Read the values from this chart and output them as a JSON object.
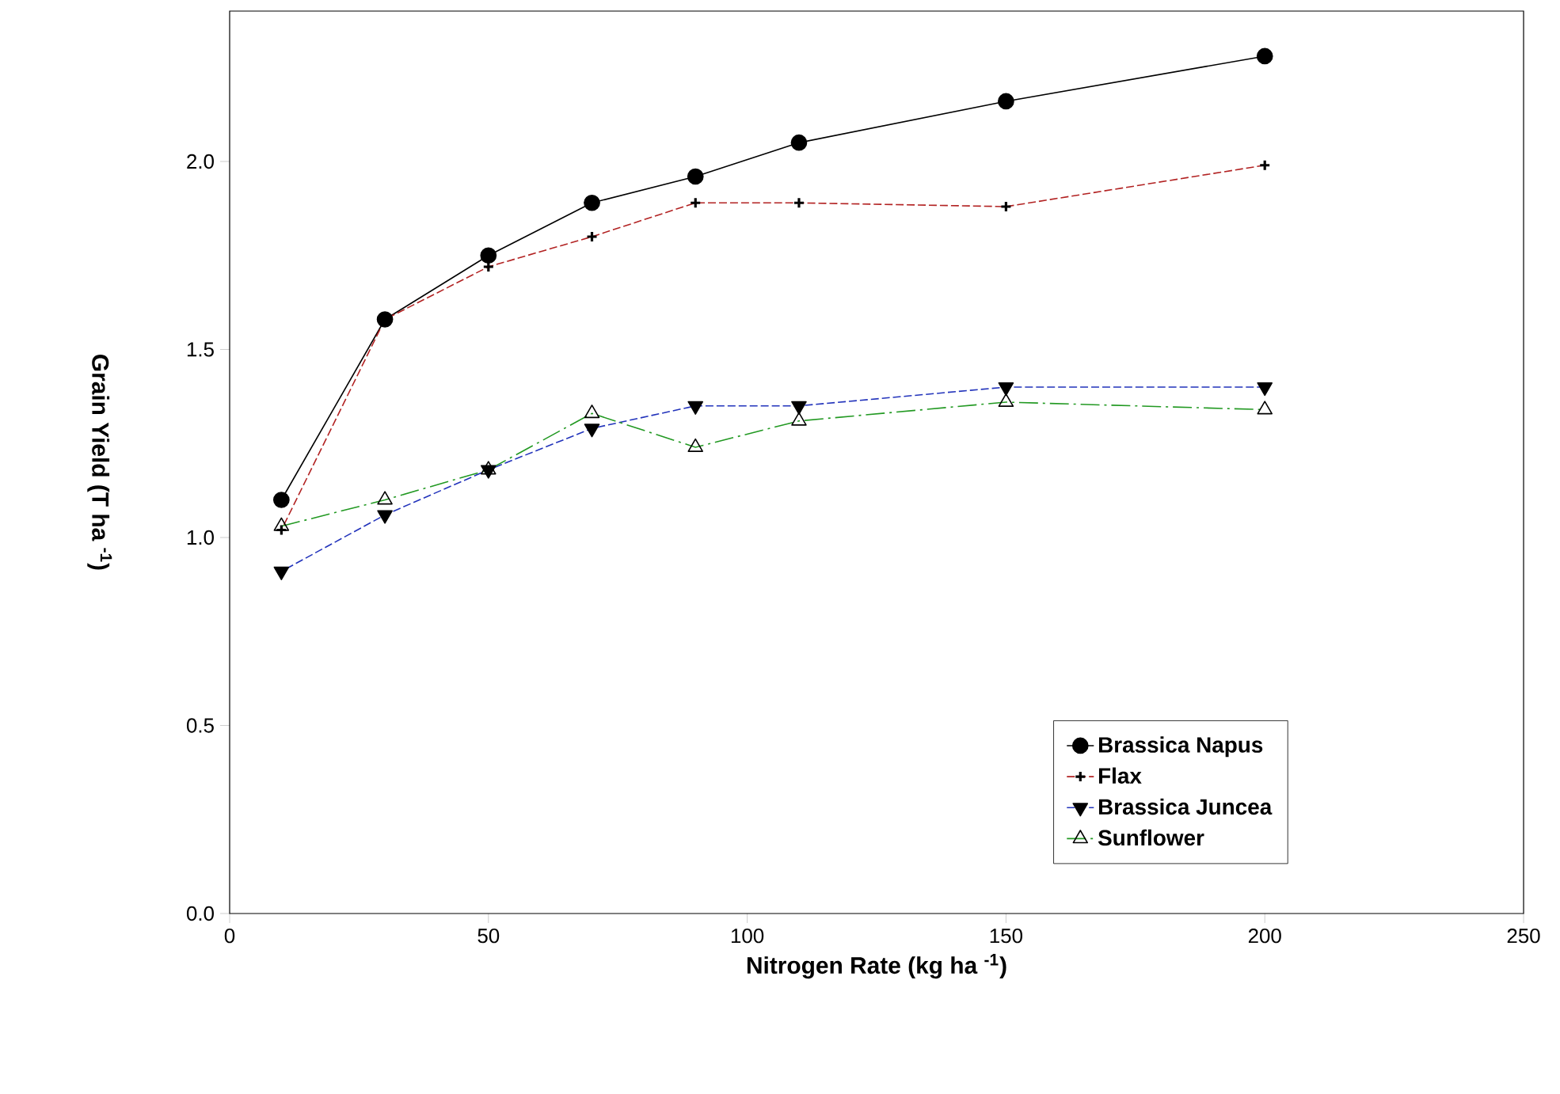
{
  "chart_data": {
    "type": "line",
    "xlabel": "Nitrogen Rate (kg ha $^{-1}$)",
    "ylabel": "Grain Yield (T ha $^{-1}$)",
    "x": [
      10,
      30,
      50,
      70,
      90,
      110,
      150,
      200
    ],
    "series": [
      {
        "name": "Brassica Napus",
        "color": "#000000",
        "marker": "circle",
        "line_style": "solid",
        "values": [
          1.1,
          1.58,
          1.75,
          1.89,
          1.96,
          2.05,
          2.16,
          2.28
        ]
      },
      {
        "name": "Flax",
        "color": "#b22222",
        "marker": "cross",
        "line_style": "dashed",
        "values": [
          1.02,
          1.58,
          1.72,
          1.8,
          1.89,
          1.89,
          1.88,
          1.99
        ]
      },
      {
        "name": "Brassica Juncea",
        "color": "#2233bb",
        "marker": "triangle-down",
        "line_style": "dashed",
        "values": [
          0.91,
          1.06,
          1.18,
          1.29,
          1.35,
          1.35,
          1.4,
          1.4
        ]
      },
      {
        "name": "Sunflower",
        "color": "#229922",
        "marker": "triangle",
        "line_style": "dashdot",
        "values": [
          1.03,
          1.1,
          1.18,
          1.33,
          1.24,
          1.31,
          1.36,
          1.34
        ]
      }
    ],
    "xlim": [
      0,
      250
    ],
    "ylim": [
      0,
      2.4
    ],
    "xticks": [
      0,
      50,
      100,
      150,
      200,
      250
    ],
    "yticks": [
      {
        "value": 0,
        "label": "0.0"
      },
      {
        "value": 0.5,
        "label": "0.5"
      },
      {
        "value": 1,
        "label": "1.0"
      },
      {
        "value": 1.5,
        "label": "1.5"
      },
      {
        "value": 2,
        "label": "2.0"
      }
    ],
    "legend": "bottom right",
    "grid": false
  }
}
